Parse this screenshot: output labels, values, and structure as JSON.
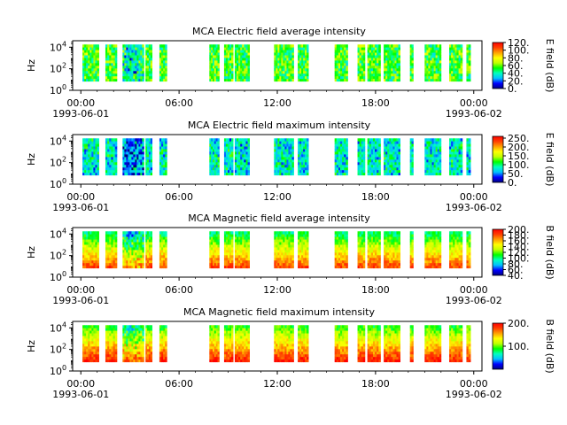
{
  "chart_data": [
    {
      "type": "heatmap",
      "title": "MCA  Electric field average intensity",
      "ylabel": "Hz",
      "colorbar_label": "E field (dB)",
      "clim": [
        0,
        120
      ],
      "colorbar_ticks": [
        "0.",
        "20.",
        "40.",
        "60.",
        "80.",
        "100.",
        "120."
      ],
      "colorbar_tick_values": [
        0,
        20,
        40,
        60,
        80,
        100,
        120
      ],
      "base_level": 55
    },
    {
      "type": "heatmap",
      "title": "MCA  Electric field maximum intensity",
      "ylabel": "Hz",
      "colorbar_label": "E field (dB)",
      "clim": [
        0,
        260
      ],
      "colorbar_ticks": [
        "0.",
        "50.",
        "100.",
        "150.",
        "200.",
        "250."
      ],
      "colorbar_tick_values": [
        0,
        50,
        100,
        150,
        200,
        250
      ],
      "base_level": 80
    },
    {
      "type": "heatmap",
      "title": "MCA  Magnetic field average intensity",
      "ylabel": "Hz",
      "colorbar_label": "B field (dB)",
      "clim": [
        40,
        200
      ],
      "colorbar_ticks": [
        "40.",
        "60.",
        "80.",
        "100.",
        "120.",
        "140.",
        "160.",
        "180.",
        "200."
      ],
      "colorbar_tick_values": [
        40,
        60,
        80,
        100,
        120,
        140,
        160,
        180,
        200
      ],
      "base_level": 110
    },
    {
      "type": "heatmap",
      "title": "MCA  Magnetic field maximum intensity",
      "ylabel": "Hz",
      "colorbar_label": "B field (dB)",
      "clim": [
        0,
        200
      ],
      "colorbar_ticks": [
        "100.",
        "200."
      ],
      "colorbar_tick_values": [
        100,
        200
      ],
      "base_level": 100
    }
  ],
  "shared_axes": {
    "y_ticks": [
      {
        "base": "10",
        "exp": "0",
        "log": 0
      },
      {
        "base": "10",
        "exp": "2",
        "log": 2
      },
      {
        "base": "10",
        "exp": "4",
        "log": 4
      }
    ],
    "ylim_log10": [
      0,
      4.6
    ],
    "x_range_hours": [
      -0.5,
      24.5
    ],
    "x_ticks": [
      {
        "hour": 0,
        "label": "00:00",
        "date": "1993-06-01"
      },
      {
        "hour": 6,
        "label": "06:00",
        "date": ""
      },
      {
        "hour": 12,
        "label": "12:00",
        "date": ""
      },
      {
        "hour": 18,
        "label": "18:00",
        "date": ""
      },
      {
        "hour": 24,
        "label": "00:00",
        "date": "1993-06-02"
      }
    ],
    "data_intervals_hours": [
      [
        0.1,
        1.1
      ],
      [
        1.5,
        2.2
      ],
      [
        2.55,
        3.85
      ],
      [
        3.95,
        4.35
      ],
      [
        4.8,
        5.25
      ],
      [
        7.85,
        8.45
      ],
      [
        8.75,
        9.3
      ],
      [
        9.4,
        10.3
      ],
      [
        11.8,
        13.0
      ],
      [
        13.25,
        13.9
      ],
      [
        15.5,
        16.3
      ],
      [
        16.9,
        17.35
      ],
      [
        17.5,
        18.3
      ],
      [
        18.5,
        19.5
      ],
      [
        20.1,
        20.3
      ],
      [
        21.0,
        22.0
      ],
      [
        22.5,
        23.3
      ],
      [
        23.55,
        23.8
      ]
    ]
  },
  "colors": {
    "colormap": [
      "#000080",
      "#0000ff",
      "#00c0ff",
      "#00ffc0",
      "#00ff00",
      "#c0ff00",
      "#ffff00",
      "#ffa000",
      "#ff4000",
      "#ff0000"
    ]
  }
}
